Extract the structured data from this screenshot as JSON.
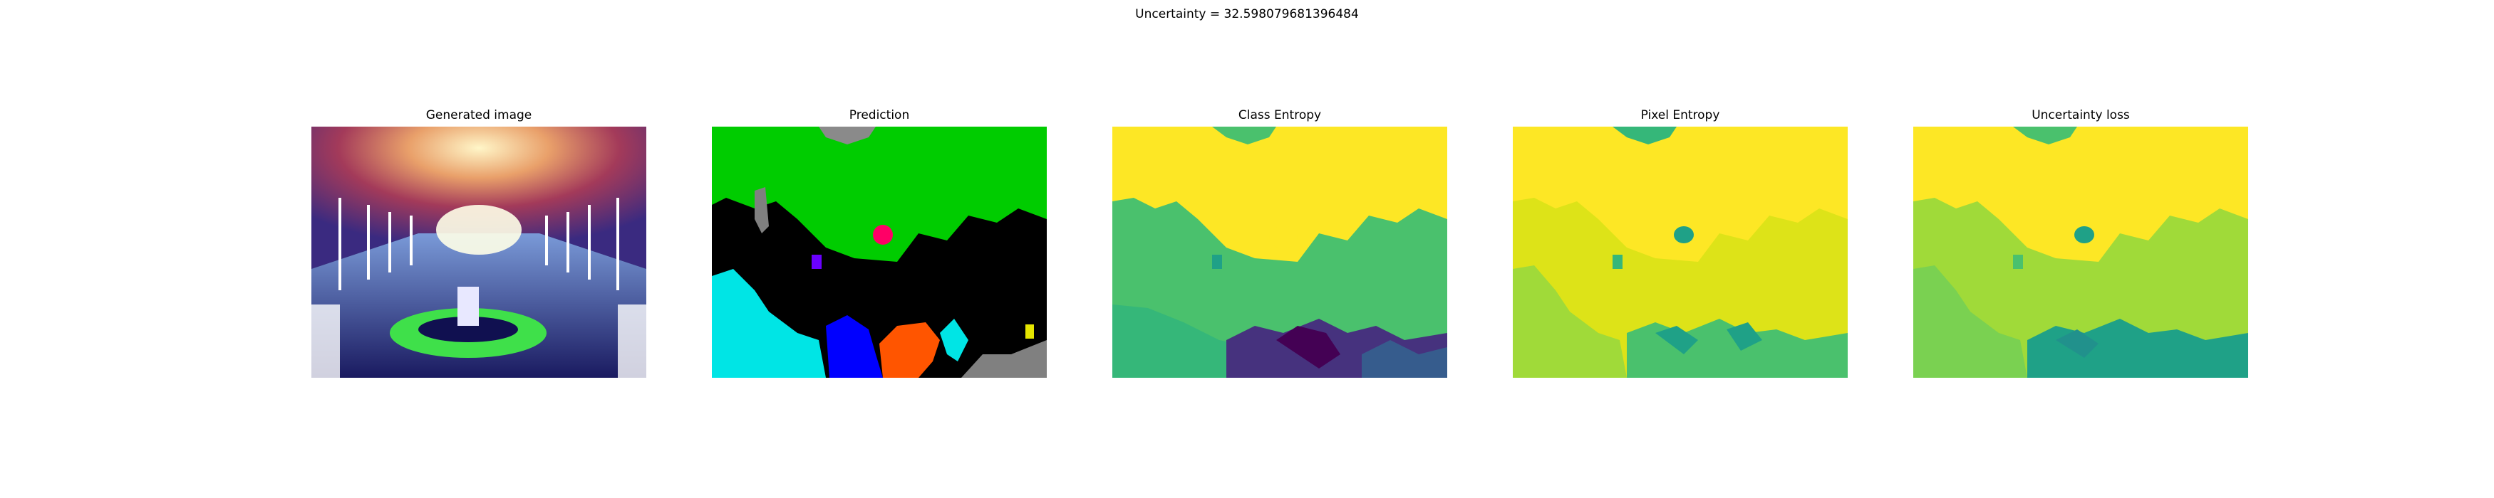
{
  "figure": {
    "suptitle": "Uncertainty = 32.598079681396484"
  },
  "panels": [
    {
      "title": "Generated image"
    },
    {
      "title": "Prediction"
    },
    {
      "title": "Class Entropy"
    },
    {
      "title": "Pixel Entropy"
    },
    {
      "title": "Uncertainty loss"
    }
  ],
  "colors": {
    "viridis_yellow": "#fde725",
    "viridis_ltgreen": "#a0da39",
    "viridis_green": "#4ac16d",
    "viridis_teal": "#1fa187",
    "viridis_blue": "#365c8d",
    "viridis_indigo": "#46327e",
    "viridis_purple": "#440154",
    "seg_green": "#00cc00",
    "seg_black": "#000000",
    "seg_cyan": "#00e5e5",
    "seg_blue": "#0000ff",
    "seg_orange": "#ff5500",
    "seg_gray": "#808080",
    "seg_pink": "#ff0066"
  },
  "icons": []
}
